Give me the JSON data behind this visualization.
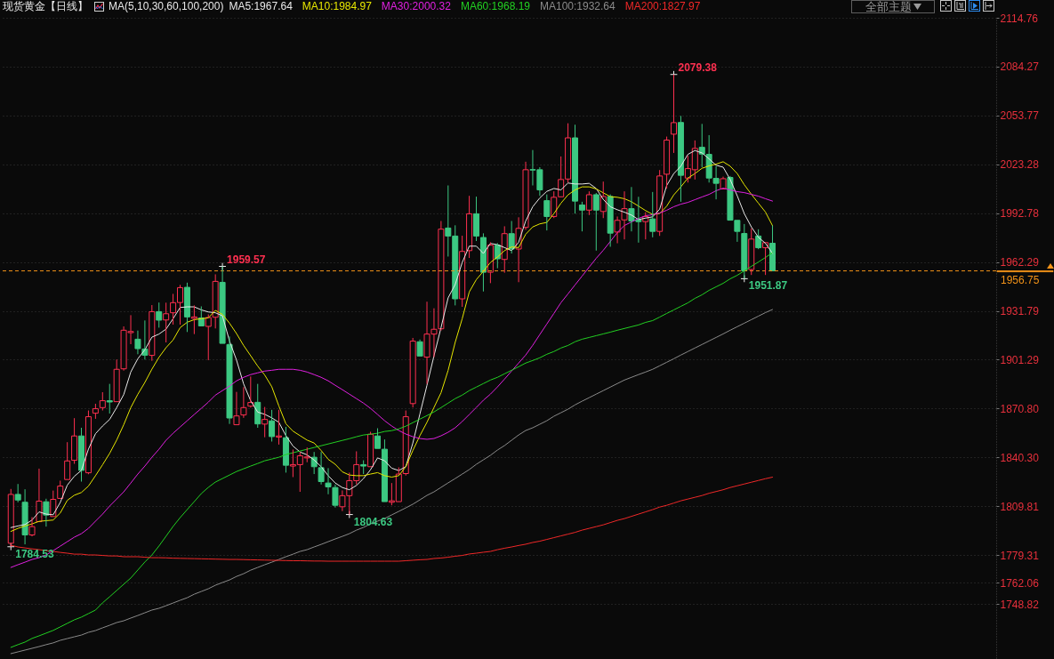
{
  "chart_data": {
    "type": "candlestick",
    "title": "现货黄金【日线】",
    "legend_title": "MA(5,10,30,60,100,200)",
    "categories": [
      null,
      null,
      null,
      null,
      null,
      null,
      null,
      null,
      null,
      null,
      null,
      null,
      null,
      null,
      null,
      null,
      null,
      null,
      null,
      null,
      null,
      null,
      null,
      null,
      null,
      null,
      null,
      null,
      null,
      null,
      null,
      null,
      null,
      null,
      null,
      null,
      null,
      null,
      null,
      null,
      null,
      null,
      null,
      null,
      null,
      null,
      null,
      null,
      null,
      null,
      null,
      null,
      null,
      null,
      null,
      null,
      null,
      null,
      null,
      null,
      null,
      null,
      null,
      null,
      null,
      null,
      null,
      null,
      null,
      null,
      null,
      null,
      null,
      null,
      null,
      null,
      null,
      null,
      null,
      null,
      null,
      null,
      null,
      null,
      null,
      null,
      null,
      null,
      null,
      null,
      null,
      null,
      null,
      null,
      null,
      null,
      null,
      null,
      null,
      null,
      null,
      null,
      null,
      null,
      null,
      null,
      null,
      null,
      null
    ],
    "ohlc": [
      [
        1786.7,
        1820.6,
        1784.53,
        1817.2
      ],
      [
        1817.2,
        1823.7,
        1812.3,
        1813.7
      ],
      [
        1812.3,
        1820.4,
        1786.0,
        1791.9
      ],
      [
        1791.9,
        1803.0,
        1791.0,
        1797.1
      ],
      [
        1800.2,
        1833.3,
        1799.9,
        1813.0
      ],
      [
        1812.6,
        1814.5,
        1797.1,
        1804.3
      ],
      [
        1803.4,
        1819.6,
        1803.0,
        1814.1
      ],
      [
        1814.7,
        1825.8,
        1814.1,
        1822.4
      ],
      [
        1826.5,
        1849.8,
        1826.1,
        1838.1
      ],
      [
        1838.5,
        1864.8,
        1836.3,
        1853.7
      ],
      [
        1853.7,
        1858.8,
        1825.2,
        1832.2
      ],
      [
        1830.7,
        1869.6,
        1829.8,
        1865.7
      ],
      [
        1867.9,
        1873.8,
        1864.4,
        1870.7
      ],
      [
        1871.4,
        1881.0,
        1869.6,
        1875.7
      ],
      [
        1875.7,
        1886.2,
        1867.7,
        1874.9
      ],
      [
        1875.1,
        1901.4,
        1874.7,
        1895.3
      ],
      [
        1895.6,
        1922.1,
        1894.5,
        1919.7
      ],
      [
        1918.2,
        1929.1,
        1911.0,
        1918.9
      ],
      [
        1914.1,
        1919.5,
        1904.7,
        1908.2
      ],
      [
        1908.0,
        1925.8,
        1901.4,
        1904.1
      ],
      [
        1904.0,
        1935.4,
        1900.6,
        1931.3
      ],
      [
        1931.3,
        1937.0,
        1921.3,
        1926.0
      ],
      [
        1926.1,
        1936.9,
        1912.1,
        1930.0
      ],
      [
        1930.6,
        1942.4,
        1923.2,
        1936.9
      ],
      [
        1937.0,
        1948.0,
        1923.2,
        1946.3
      ],
      [
        1946.5,
        1949.4,
        1918.6,
        1928.0
      ],
      [
        1927.1,
        1935.2,
        1917.3,
        1928.0
      ],
      [
        1927.4,
        1934.6,
        1921.7,
        1922.4
      ],
      [
        1922.1,
        1929.6,
        1901.0,
        1927.6
      ],
      [
        1927.8,
        1954.6,
        1920.8,
        1950.2
      ],
      [
        1949.6,
        1959.57,
        1911.2,
        1911.5
      ],
      [
        1910.8,
        1915.8,
        1861.2,
        1864.9
      ],
      [
        1860.7,
        1881.2,
        1860.3,
        1866.2
      ],
      [
        1866.8,
        1884.2,
        1865.0,
        1871.4
      ],
      [
        1872.3,
        1890.8,
        1871.4,
        1874.6
      ],
      [
        1874.7,
        1886.2,
        1858.8,
        1861.2
      ],
      [
        1861.1,
        1871.8,
        1852.9,
        1864.0
      ],
      [
        1863.1,
        1870.0,
        1850.2,
        1853.3
      ],
      [
        1853.0,
        1870.0,
        1848.3,
        1853.7
      ],
      [
        1852.6,
        1859.4,
        1830.8,
        1835.4
      ],
      [
        1834.9,
        1845.2,
        1828.0,
        1835.8
      ],
      [
        1835.8,
        1843.7,
        1818.8,
        1841.3
      ],
      [
        1840.0,
        1846.5,
        1837.3,
        1840.6
      ],
      [
        1840.4,
        1843.7,
        1829.9,
        1834.5
      ],
      [
        1833.9,
        1843.7,
        1823.4,
        1825.2
      ],
      [
        1824.3,
        1833.6,
        1817.3,
        1821.9
      ],
      [
        1821.5,
        1823.4,
        1809.0,
        1810.4
      ],
      [
        1809.5,
        1819.7,
        1806.8,
        1816.4
      ],
      [
        1816.4,
        1830.8,
        1804.63,
        1825.8
      ],
      [
        1825.8,
        1844.1,
        1823.4,
        1835.8
      ],
      [
        1835.8,
        1838.5,
        1829.9,
        1834.9
      ],
      [
        1834.5,
        1856.3,
        1834.1,
        1854.8
      ],
      [
        1853.7,
        1858.5,
        1845.2,
        1845.9
      ],
      [
        1845.4,
        1851.5,
        1812.3,
        1812.7
      ],
      [
        1812.3,
        1824.3,
        1810.4,
        1813.2
      ],
      [
        1812.7,
        1834.1,
        1811.9,
        1829.9
      ],
      [
        1830.2,
        1869.6,
        1829.0,
        1865.7
      ],
      [
        1873.9,
        1914.9,
        1871.5,
        1912.9
      ],
      [
        1912.5,
        1913.9,
        1902.9,
        1903.6
      ],
      [
        1902.9,
        1937.5,
        1886.2,
        1917.3
      ],
      [
        1917.3,
        1933.4,
        1902.9,
        1920.3
      ],
      [
        1920.6,
        1987.9,
        1919.5,
        1982.8
      ],
      [
        1983.5,
        2010.1,
        1965.7,
        1978.5
      ],
      [
        1978.5,
        1985.2,
        1935.2,
        1939.3
      ],
      [
        1939.3,
        1978.7,
        1934.3,
        1968.9
      ],
      [
        1969.4,
        2003.6,
        1964.8,
        1992.4
      ],
      [
        1992.4,
        2003.1,
        1975.4,
        1978.5
      ],
      [
        1977.6,
        1980.2,
        1943.9,
        1955.9
      ],
      [
        1955.9,
        1974.6,
        1949.1,
        1972.8
      ],
      [
        1972.8,
        1974.1,
        1958.4,
        1964.3
      ],
      [
        1963.9,
        1984.6,
        1955.6,
        1980.0
      ],
      [
        1980.0,
        1987.9,
        1967.6,
        1970.4
      ],
      [
        1970.4,
        1990.2,
        1949.7,
        1983.3
      ],
      [
        1983.9,
        2024.9,
        1982.4,
        2019.9
      ],
      [
        2020.0,
        2032.2,
        2010.1,
        2019.7
      ],
      [
        2019.9,
        2021.5,
        2003.6,
        2007.3
      ],
      [
        2000.6,
        2004.5,
        1982.0,
        1990.7
      ],
      [
        1990.7,
        2006.4,
        1989.7,
        2002.7
      ],
      [
        2003.0,
        2028.2,
        2002.7,
        2013.8
      ],
      [
        2014.1,
        2048.9,
        2011.9,
        2039.8
      ],
      [
        2039.8,
        2048.0,
        1992.5,
        2000.3
      ],
      [
        1997.9,
        1999.9,
        1981.4,
        1994.7
      ],
      [
        1994.7,
        2006.4,
        1991.6,
        2004.3
      ],
      [
        2004.3,
        2005.4,
        1969.4,
        1994.7
      ],
      [
        1993.8,
        2012.5,
        1989.7,
        2003.2
      ],
      [
        2003.2,
        2004.5,
        1971.8,
        1980.3
      ],
      [
        1981.0,
        1990.7,
        1974.0,
        1988.3
      ],
      [
        1988.6,
        2006.4,
        1976.4,
        1995.6
      ],
      [
        1995.6,
        2009.1,
        1981.4,
        1987.9
      ],
      [
        1988.6,
        2003.0,
        1974.4,
        1987.5
      ],
      [
        1987.5,
        1993.4,
        1976.4,
        1990.7
      ],
      [
        1989.2,
        2006.0,
        1977.7,
        1981.4
      ],
      [
        1981.4,
        2019.7,
        1978.6,
        2016.0
      ],
      [
        2017.1,
        2040.6,
        2008.2,
        2038.4
      ],
      [
        2042.1,
        2079.38,
        2030.4,
        2049.3
      ],
      [
        2049.4,
        2053.5,
        1999.9,
        2016.4
      ],
      [
        2014.7,
        2028.6,
        2011.9,
        2020.6
      ],
      [
        2019.9,
        2038.2,
        2013.8,
        2033.2
      ],
      [
        2033.9,
        2048.5,
        2021.5,
        2029.7
      ],
      [
        2029.5,
        2041.5,
        2011.9,
        2014.7
      ],
      [
        2014.5,
        2022.1,
        2001.4,
        2011.4
      ],
      [
        2007.9,
        2015.6,
        2007.3,
        2014.3
      ],
      [
        2015.1,
        2016.0,
        1987.9,
        1988.4
      ],
      [
        1988.3,
        1988.8,
        1974.9,
        1981.4
      ],
      [
        1980.1,
        1986.0,
        1951.87,
        1956.8
      ],
      [
        1957.6,
        1983.3,
        1954.2,
        1976.6
      ],
      [
        1978.5,
        1982.7,
        1970.3,
        1971.2
      ],
      [
        1971.2,
        1974.9,
        1954.2,
        1974.4
      ],
      [
        1974.0,
        1985.1,
        1956.5,
        1956.75
      ]
    ],
    "colors": [
      "#ff3050",
      "#3cc882",
      "#3cc882",
      "#ff3050",
      "#ff3050",
      "#3cc882",
      "#ff3050",
      "#ff3050",
      "#ff3050",
      "#ff3050",
      "#3cc882",
      "#ff3050",
      "#ff3050",
      "#ff3050",
      "#3cc882",
      "#ff3050",
      "#ff3050",
      "#ff3050",
      "#3cc882",
      "#3cc882",
      "#ff3050",
      "#3cc882",
      "#ff3050",
      "#ff3050",
      "#ff3050",
      "#3cc882",
      "#ff3050",
      "#3cc882",
      "#ff3050",
      "#ff3050",
      "#3cc882",
      "#3cc882",
      "#ff3050",
      "#ff3050",
      "#ff3050",
      "#3cc882",
      "#ff3050",
      "#3cc882",
      "#ff3050",
      "#3cc882",
      "#ff3050",
      "#ff3050",
      "#ff3050",
      "#3cc882",
      "#3cc882",
      "#3cc882",
      "#3cc882",
      "#ff3050",
      "#ff3050",
      "#ff3050",
      "#3cc882",
      "#ff3050",
      "#3cc882",
      "#3cc882",
      "#ff3050",
      "#ff3050",
      "#ff3050",
      "#ff3050",
      "#3cc882",
      "#ff3050",
      "#ff3050",
      "#ff3050",
      "#3cc882",
      "#3cc882",
      "#ff3050",
      "#ff3050",
      "#3cc882",
      "#3cc882",
      "#ff3050",
      "#3cc882",
      "#ff3050",
      "#3cc882",
      "#ff3050",
      "#ff3050",
      "#3cc882",
      "#3cc882",
      "#3cc882",
      "#ff3050",
      "#ff3050",
      "#ff3050",
      "#3cc882",
      "#3cc882",
      "#ff3050",
      "#3cc882",
      "#ff3050",
      "#3cc882",
      "#ff3050",
      "#ff3050",
      "#3cc882",
      "#3cc882",
      "#ff3050",
      "#3cc882",
      "#ff3050",
      "#ff3050",
      "#ff3050",
      "#3cc882",
      "#ff3050",
      "#ff3050",
      "#3cc882",
      "#3cc882",
      "#3cc882",
      "#ff3050",
      "#3cc882",
      "#3cc882",
      "#3cc882",
      "#ff3050",
      "#3cc882",
      "#ff3050",
      "#3cc882"
    ],
    "series": [
      {
        "name": "MA5:1967.64",
        "type": "line",
        "color": "#e8e8e8",
        "values": [
          1796.5,
          1797.5,
          1798.4,
          1801.2,
          1806.3,
          1804.9,
          1804.5,
          1812.2,
          1823.0,
          1828.5,
          1832.2,
          1845.5,
          1855.1,
          1859.9,
          1864.0,
          1871.4,
          1879.5,
          1893.6,
          1901.9,
          1907.5,
          1915.4,
          1917.3,
          1920.4,
          1926.9,
          1933.9,
          1934.3,
          1934.3,
          1932.4,
          1931.1,
          1930.6,
          1928.7,
          1913.0,
          1901.0,
          1886.2,
          1875.7,
          1868.6,
          1867.2,
          1865.0,
          1862.2,
          1853.9,
          1847.4,
          1843.7,
          1841.9,
          1838.7,
          1834.5,
          1828.9,
          1824.3,
          1821.5,
          1820.1,
          1822.8,
          1827.1,
          1832.6,
          1840.0,
          1838.2,
          1833.6,
          1832.1,
          1834.5,
          1849.3,
          1867.4,
          1885.3,
          1903.8,
          1921.4,
          1939.9,
          1948.2,
          1962.0,
          1972.2,
          1972.2,
          1967.6,
          1973.9,
          1973.1,
          1971.3,
          1969.4,
          1974.6,
          1987.9,
          1996.8,
          2002.3,
          2006.4,
          2008.2,
          2007.3,
          2011.6,
          2011.0,
          2011.0,
          2011.4,
          2008.2,
          2001.4,
          1996.8,
          1994.9,
          1993.4,
          1991.6,
          1988.8,
          1989.7,
          1990.5,
          1995.3,
          2010.1,
          2017.5,
          2022.1,
          2029.5,
          2031.9,
          2030.4,
          2026.7,
          2022.7,
          2021.5,
          2013.8,
          2003.6,
          1992.5,
          1984.2,
          1977.7,
          1974.0,
          1967.64
        ]
      },
      {
        "name": "MA10:1984.97",
        "type": "line",
        "color": "#e6e600",
        "values": [
          1794.1,
          1796.0,
          1797.5,
          1798.8,
          1800.4,
          1800.8,
          1801.2,
          1805.6,
          1813.5,
          1816.7,
          1818.4,
          1822.4,
          1828.9,
          1835.7,
          1842.8,
          1851.1,
          1860.7,
          1871.4,
          1879.7,
          1887.1,
          1895.4,
          1902.8,
          1908.8,
          1913.6,
          1921.3,
          1924.7,
          1926.3,
          1926.9,
          1927.4,
          1932.1,
          1929.6,
          1924.1,
          1917.6,
          1910.2,
          1903.8,
          1897.3,
          1891.7,
          1884.4,
          1872.4,
          1861.3,
          1856.7,
          1853.9,
          1851.1,
          1849.3,
          1844.6,
          1839.1,
          1836.0,
          1831.3,
          1829.3,
          1828.9,
          1828.9,
          1829.9,
          1830.8,
          1828.9,
          1828.0,
          1828.9,
          1834.5,
          1844.6,
          1853.9,
          1862.2,
          1871.5,
          1880.7,
          1894.6,
          1912.1,
          1926.9,
          1943.6,
          1951.3,
          1956.5,
          1962.0,
          1965.4,
          1969.4,
          1971.7,
          1971.3,
          1979.6,
          1984.2,
          1986.1,
          1987.0,
          1992.5,
          1999.0,
          2004.2,
          2007.3,
          2009.2,
          2009.2,
          2007.9,
          2005.5,
          2003.1,
          2002.7,
          2001.8,
          1999.9,
          1997.2,
          1994.4,
          1992.0,
          1992.5,
          1997.2,
          2004.2,
          2009.2,
          2014.7,
          2017.5,
          2020.8,
          2022.3,
          2023.4,
          2024.9,
          2022.1,
          2017.5,
          2010.5,
          2004.6,
          1999.0,
          1993.5,
          1984.97
        ]
      },
      {
        "name": "MA30:2000.32",
        "type": "line",
        "color": "#e020e0",
        "values": [
          1771.6,
          1773.3,
          1774.9,
          1776.6,
          1777.7,
          1779.4,
          1782.1,
          1784.9,
          1787.7,
          1790.5,
          1792.7,
          1796.0,
          1800.5,
          1804.9,
          1809.9,
          1814.3,
          1818.8,
          1824.3,
          1829.9,
          1834.9,
          1840.4,
          1845.4,
          1851.0,
          1855.4,
          1859.3,
          1863.2,
          1867.1,
          1870.9,
          1874.8,
          1879.2,
          1882.0,
          1884.8,
          1888.1,
          1890.3,
          1892.0,
          1893.1,
          1894.2,
          1894.7,
          1895.3,
          1895.3,
          1895.3,
          1894.7,
          1893.6,
          1892.0,
          1890.3,
          1888.1,
          1885.3,
          1882.6,
          1879.8,
          1877.0,
          1874.2,
          1870.9,
          1867.1,
          1863.2,
          1859.9,
          1857.1,
          1854.9,
          1853.2,
          1852.1,
          1851.6,
          1852.1,
          1853.8,
          1856.0,
          1858.8,
          1862.7,
          1867.1,
          1871.5,
          1876.0,
          1879.8,
          1884.3,
          1889.2,
          1894.2,
          1899.2,
          1904.2,
          1910.3,
          1917.0,
          1923.6,
          1930.2,
          1936.9,
          1942.4,
          1948.0,
          1953.5,
          1959.1,
          1964.6,
          1969.6,
          1975.1,
          1980.7,
          1985.1,
          1987.3,
          1989.5,
          1991.2,
          1991.8,
          1992.9,
          1994.6,
          1996.8,
          1998.4,
          1999.5,
          2001.2,
          2002.9,
          2004.5,
          2006.8,
          2008.4,
          2007.3,
          2006.2,
          2005.6,
          2004.5,
          2003.4,
          2001.8,
          2000.32
        ]
      },
      {
        "name": "MA60:1968.19",
        "type": "line",
        "color": "#22d022",
        "values": [
          1721.7,
          1723.4,
          1725.0,
          1727.3,
          1728.9,
          1730.6,
          1732.3,
          1734.5,
          1736.7,
          1738.9,
          1740.6,
          1742.8,
          1745.0,
          1749.5,
          1753.3,
          1757.2,
          1761.1,
          1765.0,
          1770.0,
          1775.0,
          1779.4,
          1785.0,
          1791.1,
          1797.2,
          1802.7,
          1807.7,
          1812.7,
          1817.7,
          1821.6,
          1824.9,
          1827.1,
          1829.3,
          1831.5,
          1833.2,
          1834.9,
          1836.5,
          1838.2,
          1839.3,
          1840.4,
          1842.1,
          1843.2,
          1844.3,
          1845.4,
          1846.5,
          1847.6,
          1848.7,
          1849.8,
          1850.9,
          1852.0,
          1853.2,
          1854.3,
          1854.8,
          1855.4,
          1856.5,
          1857.0,
          1858.1,
          1859.8,
          1862.0,
          1864.2,
          1866.4,
          1868.7,
          1871.4,
          1874.2,
          1877.0,
          1879.2,
          1882.0,
          1884.2,
          1886.4,
          1888.6,
          1890.3,
          1892.5,
          1894.7,
          1896.9,
          1899.2,
          1900.8,
          1902.5,
          1904.7,
          1906.4,
          1908.6,
          1910.2,
          1912.5,
          1914.1,
          1915.2,
          1916.3,
          1917.4,
          1918.5,
          1919.7,
          1920.8,
          1921.9,
          1923.0,
          1924.6,
          1925.7,
          1927.9,
          1930.2,
          1932.4,
          1934.6,
          1936.8,
          1939.6,
          1941.8,
          1944.6,
          1946.8,
          1949.0,
          1951.8,
          1954.0,
          1956.8,
          1959.6,
          1962.3,
          1965.1,
          1968.19
        ]
      },
      {
        "name": "MA100:1932.64",
        "type": "line",
        "color": "#8a8a8a",
        "values": [
          1717.8,
          1718.9,
          1720.0,
          1721.1,
          1722.2,
          1723.4,
          1724.5,
          1726.1,
          1727.2,
          1728.3,
          1729.4,
          1731.1,
          1732.2,
          1733.9,
          1735.5,
          1737.2,
          1738.3,
          1740.0,
          1741.6,
          1743.3,
          1745.0,
          1746.1,
          1747.7,
          1749.4,
          1751.1,
          1752.7,
          1754.9,
          1756.6,
          1758.3,
          1760.5,
          1762.2,
          1763.8,
          1766.0,
          1767.7,
          1769.9,
          1771.6,
          1773.3,
          1774.9,
          1776.6,
          1778.3,
          1779.9,
          1781.6,
          1782.7,
          1784.4,
          1786.0,
          1787.7,
          1789.4,
          1791.0,
          1792.7,
          1794.9,
          1796.6,
          1798.8,
          1800.5,
          1802.2,
          1804.4,
          1806.6,
          1808.8,
          1811.1,
          1813.8,
          1816.6,
          1818.8,
          1821.6,
          1824.4,
          1827.1,
          1829.9,
          1832.7,
          1836.0,
          1838.8,
          1841.6,
          1844.9,
          1847.7,
          1851.0,
          1854.3,
          1857.1,
          1858.8,
          1861.0,
          1863.2,
          1866.0,
          1868.2,
          1870.4,
          1873.1,
          1875.4,
          1877.6,
          1879.8,
          1882.0,
          1884.2,
          1886.4,
          1888.6,
          1890.3,
          1892.0,
          1893.6,
          1895.3,
          1897.5,
          1899.7,
          1901.9,
          1904.2,
          1906.4,
          1908.6,
          1910.8,
          1913.0,
          1915.2,
          1917.4,
          1919.7,
          1921.9,
          1924.1,
          1926.3,
          1928.5,
          1930.7,
          1932.64
        ]
      },
      {
        "name": "MA200:1827.97",
        "type": "line",
        "color": "#f02828",
        "values": [
          1785.5,
          1784.4,
          1783.8,
          1783.2,
          1782.7,
          1782.1,
          1781.6,
          1781.0,
          1780.5,
          1779.9,
          1779.9,
          1779.4,
          1779.4,
          1779.1,
          1778.8,
          1778.8,
          1778.3,
          1778.3,
          1778.3,
          1778.0,
          1777.7,
          1777.7,
          1777.6,
          1777.4,
          1777.3,
          1777.2,
          1777.1,
          1777.0,
          1776.9,
          1776.8,
          1776.7,
          1776.6,
          1776.6,
          1776.5,
          1776.4,
          1776.3,
          1776.2,
          1776.1,
          1776.0,
          1775.9,
          1775.8,
          1775.8,
          1775.7,
          1775.6,
          1775.6,
          1775.5,
          1775.5,
          1775.5,
          1775.5,
          1775.5,
          1775.5,
          1775.5,
          1775.5,
          1775.5,
          1775.5,
          1775.5,
          1775.8,
          1776.1,
          1776.4,
          1776.6,
          1777.2,
          1777.5,
          1778.0,
          1778.6,
          1779.1,
          1780.0,
          1780.5,
          1781.1,
          1781.6,
          1782.7,
          1783.6,
          1784.4,
          1785.3,
          1786.1,
          1787.2,
          1788.0,
          1789.1,
          1790.2,
          1791.3,
          1792.4,
          1793.5,
          1794.9,
          1796.0,
          1797.1,
          1798.2,
          1799.6,
          1801.0,
          1802.1,
          1803.5,
          1804.9,
          1806.3,
          1807.7,
          1809.3,
          1810.4,
          1811.8,
          1813.2,
          1814.3,
          1815.4,
          1816.5,
          1817.9,
          1819.0,
          1820.1,
          1821.5,
          1822.6,
          1823.7,
          1824.8,
          1825.9,
          1827.0,
          1827.97
        ]
      },
      {
        "type": "scatter",
        "color": "#f0f0f0",
        "marker": "cross",
        "values": [
          1784.53,
          null,
          null,
          null,
          null,
          null,
          null,
          null,
          null,
          null,
          null,
          null,
          null,
          null,
          null,
          null,
          null,
          null,
          null,
          null,
          null,
          null,
          null,
          null,
          null,
          null,
          null,
          null,
          null,
          null,
          1959.57,
          null,
          null,
          null,
          null,
          null,
          null,
          null,
          null,
          null,
          null,
          null,
          null,
          null,
          null,
          null,
          null,
          null,
          1804.63,
          null,
          null,
          null,
          null,
          null,
          null,
          null,
          null,
          null,
          null,
          null,
          null,
          null,
          null,
          null,
          null,
          null,
          null,
          null,
          null,
          null,
          null,
          null,
          null,
          null,
          null,
          null,
          null,
          null,
          null,
          null,
          null,
          null,
          null,
          null,
          null,
          null,
          null,
          null,
          null,
          null,
          null,
          null,
          null,
          null,
          2079.38,
          null,
          null,
          null,
          null,
          null,
          null,
          null,
          null,
          null,
          1951.87,
          null,
          null,
          null,
          null
        ],
        "value_labels": [
          "1784.53",
          null,
          null,
          null,
          null,
          null,
          null,
          null,
          null,
          null,
          null,
          null,
          null,
          null,
          null,
          null,
          null,
          null,
          null,
          null,
          null,
          null,
          null,
          null,
          null,
          null,
          null,
          null,
          null,
          null,
          "1959.57",
          null,
          null,
          null,
          null,
          null,
          null,
          null,
          null,
          null,
          null,
          null,
          null,
          null,
          null,
          null,
          null,
          null,
          "1804.63",
          null,
          null,
          null,
          null,
          null,
          null,
          null,
          null,
          null,
          null,
          null,
          null,
          null,
          null,
          null,
          null,
          null,
          null,
          null,
          null,
          null,
          null,
          null,
          null,
          null,
          null,
          null,
          null,
          null,
          null,
          null,
          null,
          null,
          null,
          null,
          null,
          null,
          null,
          null,
          null,
          null,
          null,
          null,
          null,
          null,
          "2079.38",
          null,
          null,
          null,
          null,
          null,
          null,
          null,
          null,
          null,
          "1951.87",
          null,
          null,
          null,
          null
        ]
      }
    ],
    "ylim": [
      1715,
      2114.76
    ],
    "yticks": [
      2114.76,
      2084.27,
      2053.77,
      2023.28,
      1992.78,
      1962.29,
      1931.79,
      1901.29,
      {
        "value": 1870.8,
        "label": "1870.80"
      },
      {
        "value": 1840.3,
        "label": "1840.30"
      },
      1809.81,
      1779.31,
      1762.06,
      1748.82
    ],
    "grid": "y",
    "legend": "top",
    "ref_lines": [
      {
        "axis": "y",
        "value": 1956.75,
        "color": "#f39318",
        "line_style": "dashed"
      }
    ],
    "annotations": [
      "1956.75",
      "全部主题"
    ]
  }
}
